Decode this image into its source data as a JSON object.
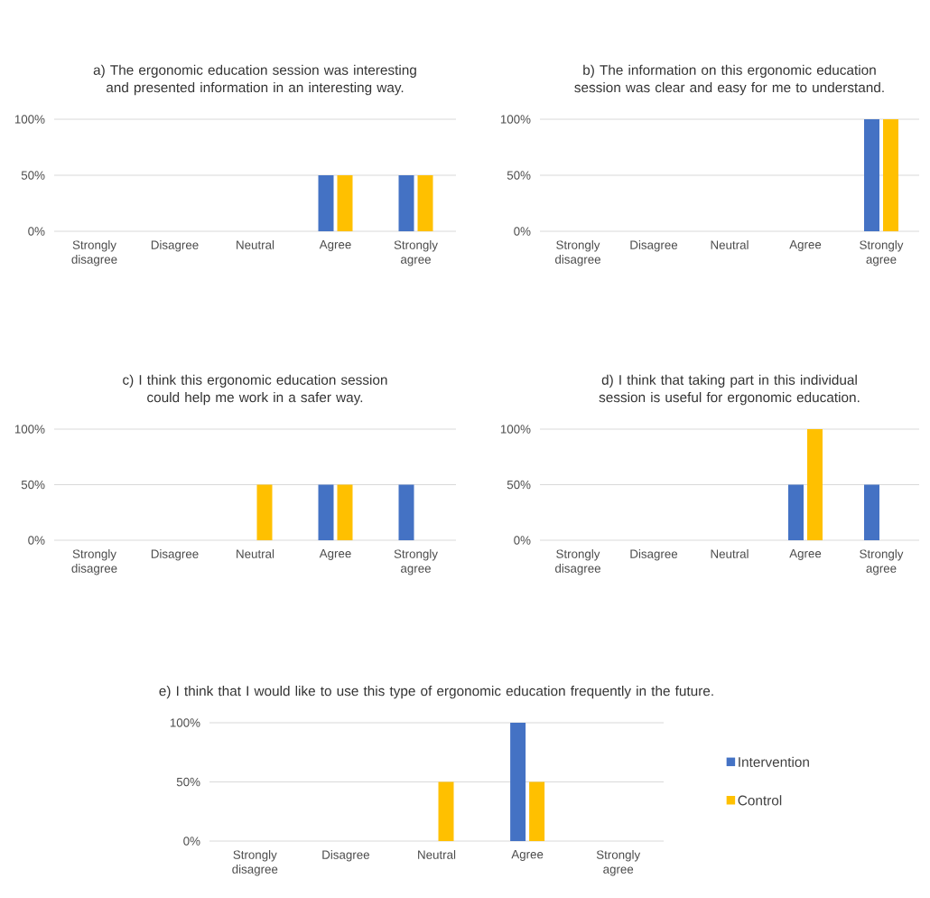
{
  "chart_data": [
    {
      "type": "bar",
      "title": "a) The ergonomic education session was interesting and presented information in an interesting way.",
      "categories": [
        "Strongly disagree",
        "Disagree",
        "Neutral",
        "Agree",
        "Strongly agree"
      ],
      "series": [
        {
          "color": "#4472c4",
          "values": [
            0,
            0,
            0,
            50,
            50
          ]
        },
        {
          "color": "#ffc000",
          "values": [
            0,
            0,
            0,
            50,
            50
          ]
        }
      ],
      "ylim": [
        0,
        100
      ],
      "yticks": [
        {
          "value": 0,
          "label": "0%"
        },
        {
          "value": 50,
          "label": "50%"
        },
        {
          "value": 100,
          "label": "100%"
        }
      ],
      "grid": "y"
    },
    {
      "type": "bar",
      "title": "b) The information on this ergonomic education session was clear and easy for me to understand.",
      "categories": [
        "Strongly disagree",
        "Disagree",
        "Neutral",
        "Agree",
        "Strongly agree"
      ],
      "series": [
        {
          "color": "#4472c4",
          "values": [
            0,
            0,
            0,
            0,
            100
          ]
        },
        {
          "color": "#ffc000",
          "values": [
            0,
            0,
            0,
            0,
            100
          ]
        }
      ],
      "ylim": [
        0,
        100
      ],
      "yticks": [
        {
          "value": 0,
          "label": "0%"
        },
        {
          "value": 50,
          "label": "50%"
        },
        {
          "value": 100,
          "label": "100%"
        }
      ],
      "grid": "y"
    },
    {
      "type": "bar",
      "title": "c) I think this ergonomic education session could help me work in a safer way.",
      "categories": [
        "Strongly disagree",
        "Disagree",
        "Neutral",
        "Agree",
        "Strongly agree"
      ],
      "series": [
        {
          "color": "#4472c4",
          "values": [
            0,
            0,
            0,
            50,
            50
          ]
        },
        {
          "color": "#ffc000",
          "values": [
            0,
            0,
            50,
            50,
            0
          ]
        }
      ],
      "ylim": [
        0,
        100
      ],
      "yticks": [
        {
          "value": 0,
          "label": "0%"
        },
        {
          "value": 50,
          "label": "50%"
        },
        {
          "value": 100,
          "label": "100%"
        }
      ],
      "grid": "y"
    },
    {
      "type": "bar",
      "title": "d) I think that taking part in this individual session is useful for ergonomic education.",
      "categories": [
        "Strongly disagree",
        "Disagree",
        "Neutral",
        "Agree",
        "Strongly agree"
      ],
      "series": [
        {
          "color": "#4472c4",
          "values": [
            0,
            0,
            0,
            50,
            50
          ]
        },
        {
          "color": "#ffc000",
          "values": [
            0,
            0,
            0,
            100,
            0
          ]
        }
      ],
      "ylim": [
        0,
        100
      ],
      "yticks": [
        {
          "value": 0,
          "label": "0%"
        },
        {
          "value": 50,
          "label": "50%"
        },
        {
          "value": 100,
          "label": "100%"
        }
      ],
      "grid": "y"
    },
    {
      "type": "bar",
      "title": "e) I think that I would like to use this type of ergonomic education frequently in the future.",
      "categories": [
        "Strongly disagree",
        "Disagree",
        "Neutral",
        "Agree",
        "Strongly agree"
      ],
      "series": [
        {
          "name": "Intervention",
          "color": "#4472c4",
          "values": [
            0,
            0,
            0,
            100,
            0
          ]
        },
        {
          "name": "Control",
          "color": "#ffc000",
          "values": [
            0,
            0,
            50,
            50,
            0
          ]
        }
      ],
      "ylim": [
        0,
        100
      ],
      "yticks": [
        {
          "value": 0,
          "label": "0%"
        },
        {
          "value": 50,
          "label": "50%"
        },
        {
          "value": 100,
          "label": "100%"
        }
      ],
      "grid": "y",
      "legend": "right"
    }
  ]
}
